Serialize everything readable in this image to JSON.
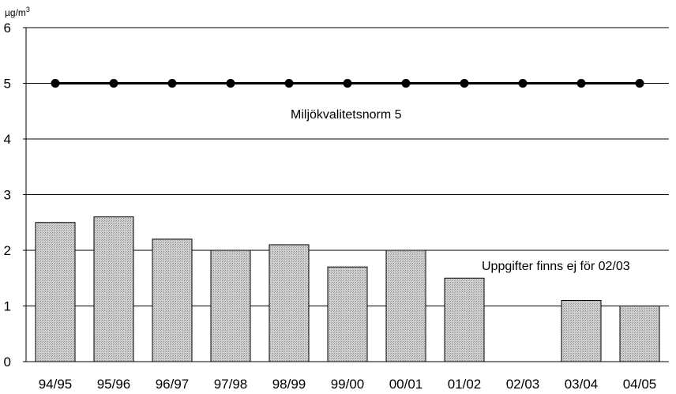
{
  "chart_data": {
    "type": "bar",
    "y_unit": "µg/m³",
    "ylim": [
      0,
      6
    ],
    "yticks": [
      0,
      1,
      2,
      3,
      4,
      5,
      6
    ],
    "grid": true,
    "categories": [
      "94/95",
      "95/96",
      "96/97",
      "97/98",
      "98/99",
      "99/00",
      "00/01",
      "01/02",
      "02/03",
      "03/04",
      "04/05"
    ],
    "series": [
      {
        "type": "bar",
        "values": [
          2.5,
          2.6,
          2.2,
          2.0,
          2.1,
          1.7,
          2.0,
          1.5,
          null,
          1.1,
          1.0
        ]
      },
      {
        "type": "line",
        "values": [
          5,
          5,
          5,
          5,
          5,
          5,
          5,
          5,
          5,
          5,
          5
        ]
      }
    ],
    "annotations": [
      {
        "text": "Miljökvalitetsnorm 5"
      },
      {
        "text": "Uppgifter finns ej för 02/03"
      }
    ],
    "colors": {
      "bar": "#c8c8c8",
      "line": "#000000"
    }
  }
}
